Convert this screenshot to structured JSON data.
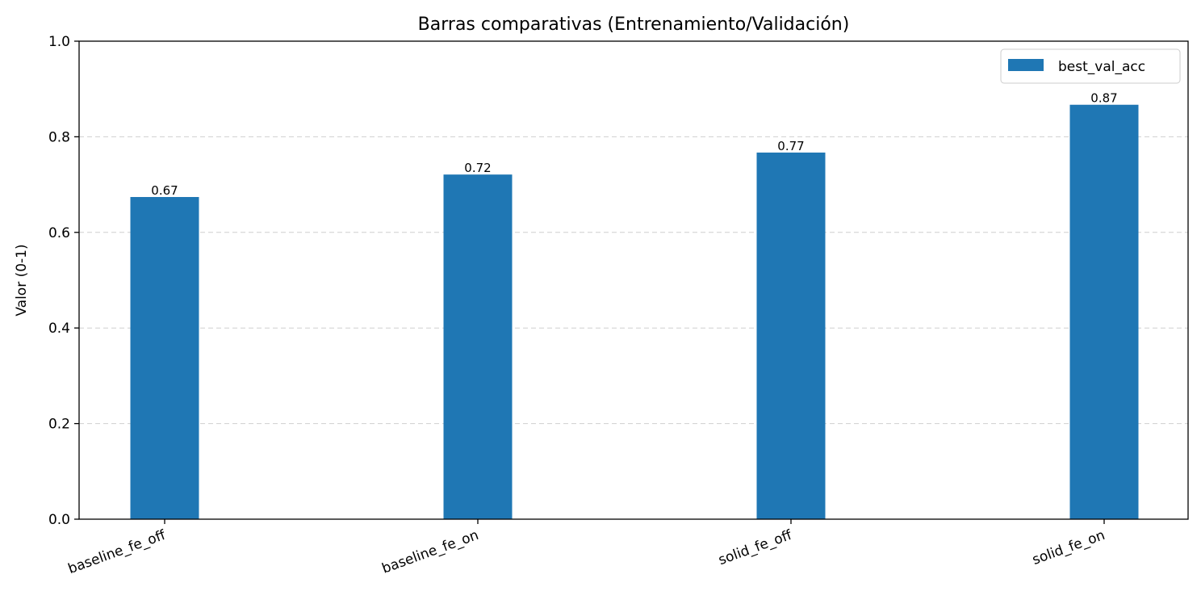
{
  "chart_data": {
    "type": "bar",
    "title": "Barras comparativas (Entrenamiento/Validación)",
    "xlabel": "",
    "ylabel": "Valor (0-1)",
    "ylim": [
      0,
      1.0
    ],
    "yticks": [
      "0.0",
      "0.2",
      "0.4",
      "0.6",
      "0.8",
      "1.0"
    ],
    "grid": "y-dashed",
    "legend_position": "top-right",
    "categories": [
      "baseline_fe_off",
      "baseline_fe_on",
      "solid_fe_off",
      "solid_fe_on"
    ],
    "series": [
      {
        "name": "best_val_acc",
        "values": [
          0.674,
          0.721,
          0.767,
          0.867
        ],
        "labels": [
          "0.67",
          "0.72",
          "0.77",
          "0.87"
        ],
        "color": "#1f77b4"
      }
    ]
  }
}
